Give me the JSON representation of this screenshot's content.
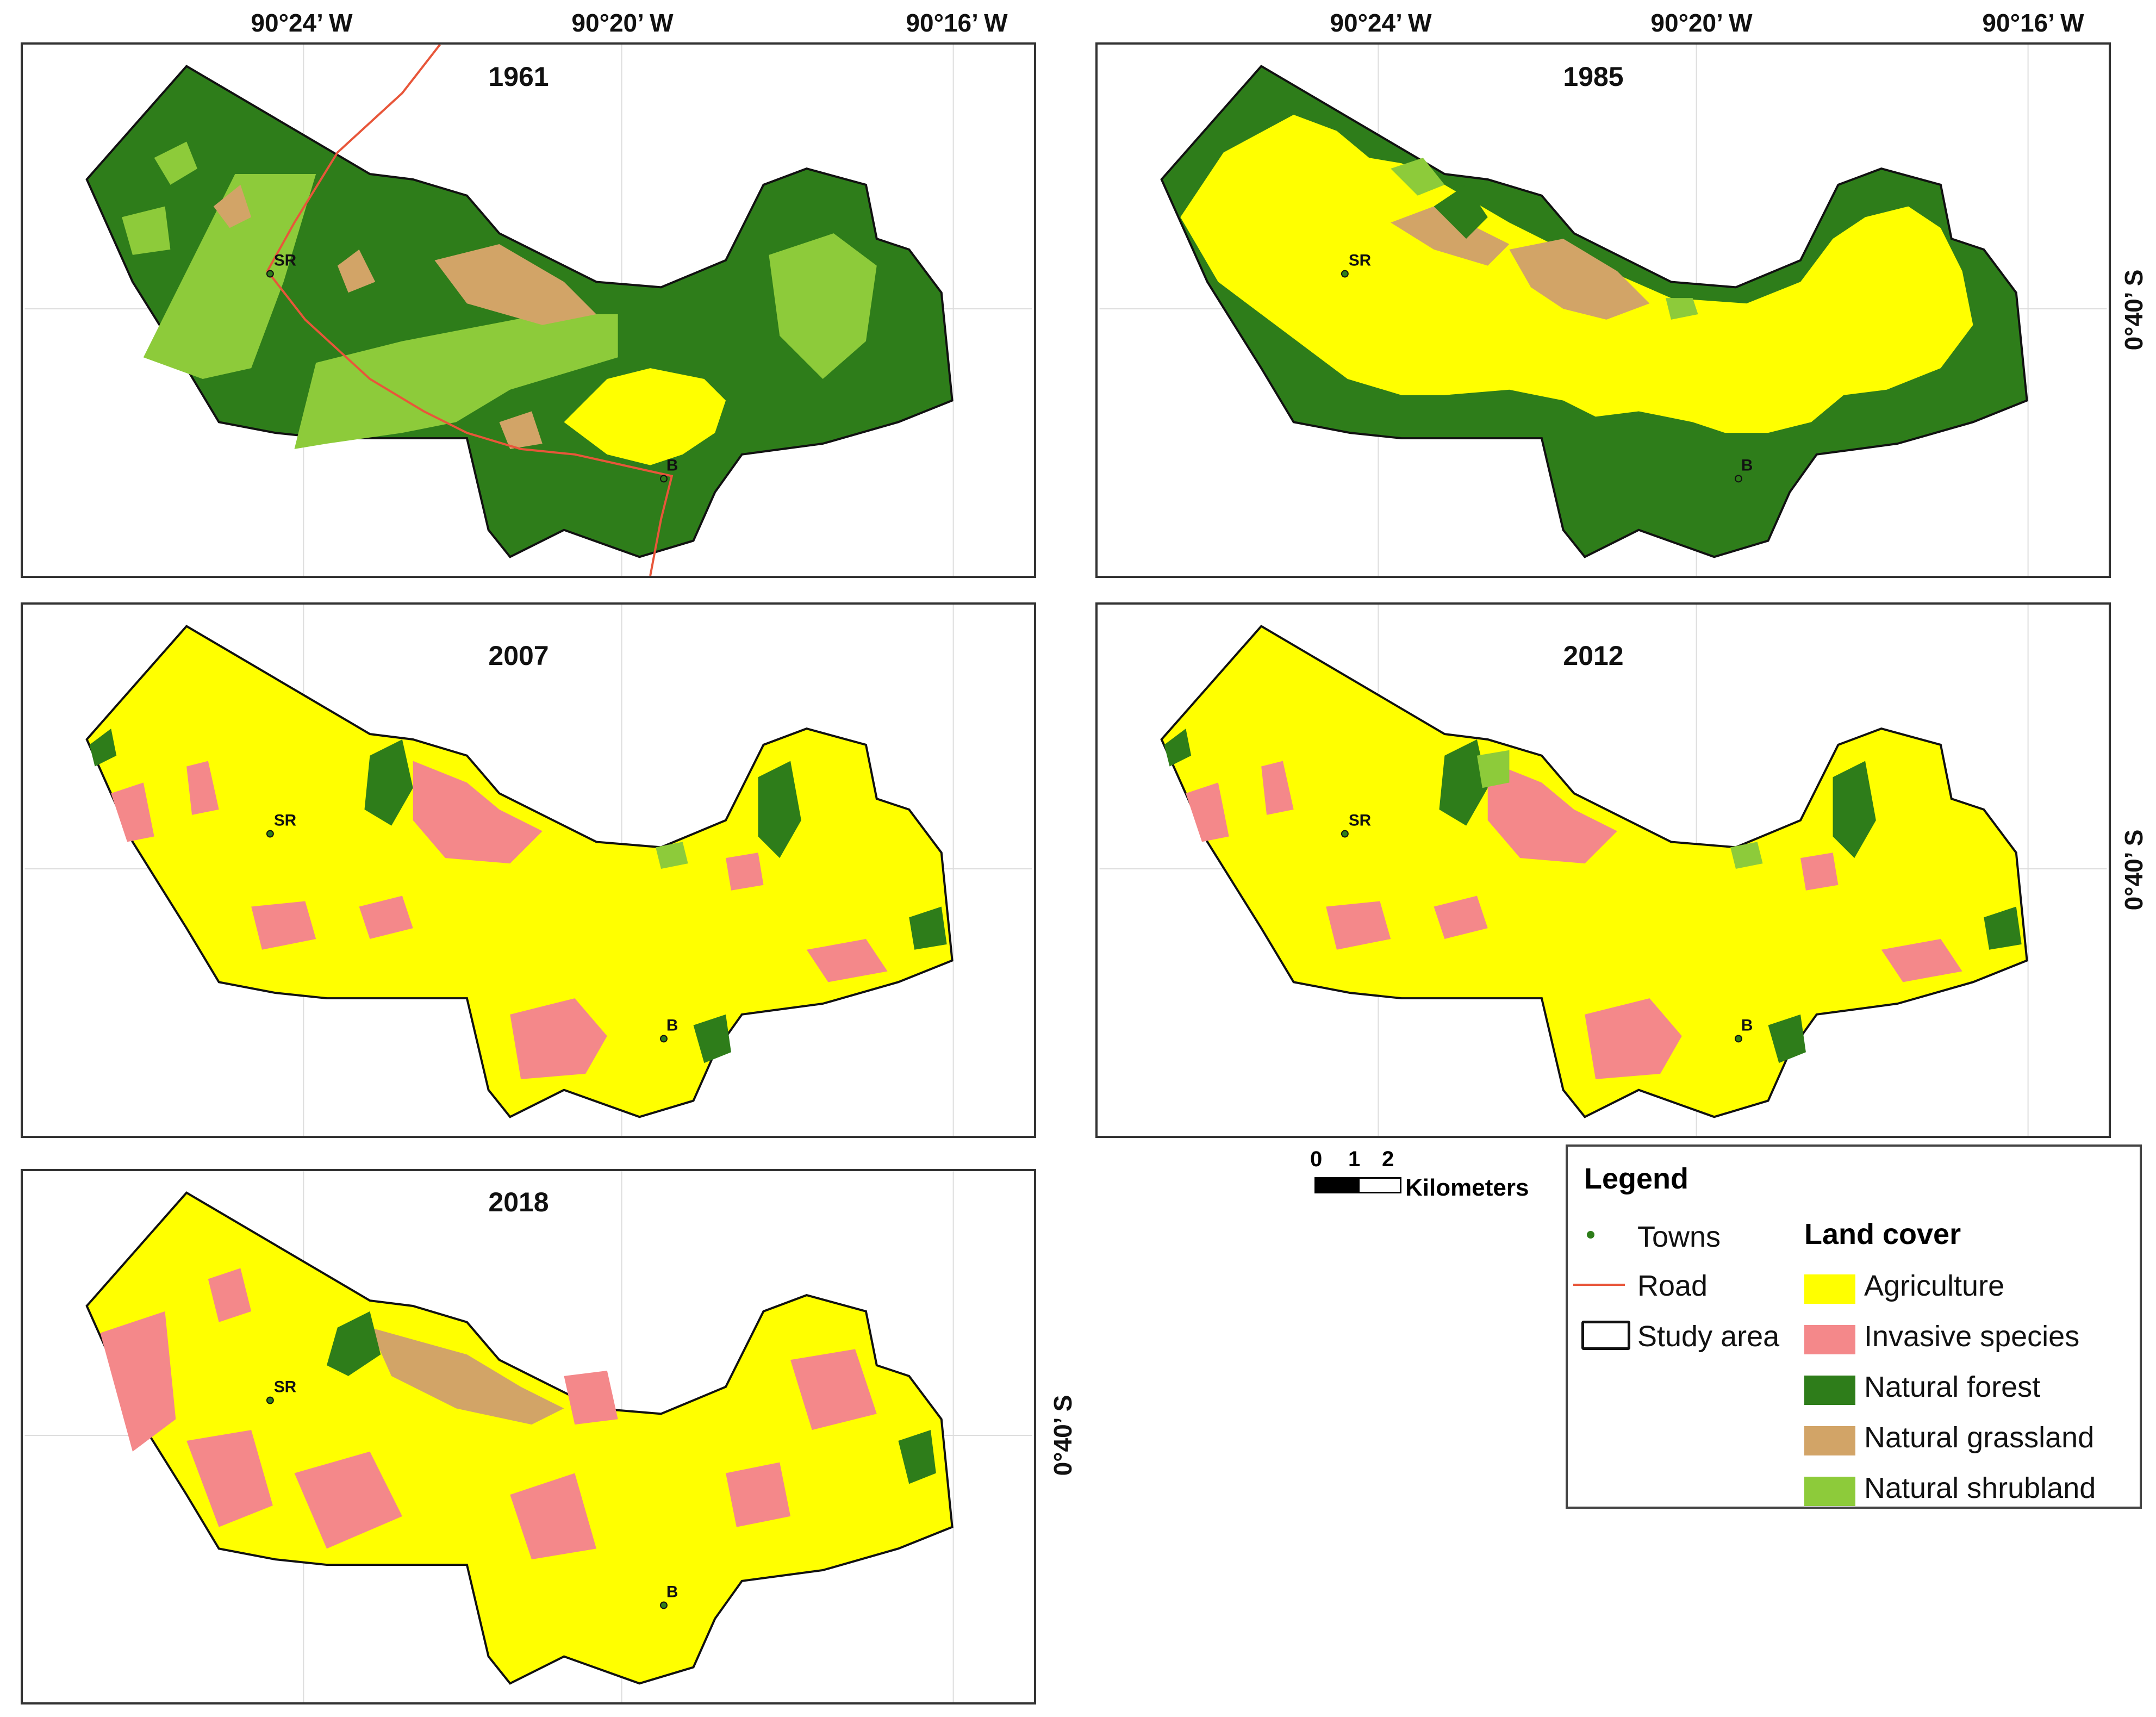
{
  "coordinates": {
    "lon_labels": [
      "90°24’ W",
      "90°20’ W",
      "90°16’ W"
    ],
    "lat_label": "0°40’ S"
  },
  "panels": [
    {
      "year": "1961"
    },
    {
      "year": "1985"
    },
    {
      "year": "2007"
    },
    {
      "year": "2012"
    },
    {
      "year": "2018"
    }
  ],
  "towns": {
    "sr": "SR",
    "b": "B"
  },
  "scale_bar": {
    "ticks": [
      "0",
      "1",
      "2"
    ],
    "unit": "Kilometers"
  },
  "legend": {
    "title": "Legend",
    "towns": "Towns",
    "road": "Road",
    "study_area": "Study area",
    "land_cover_title": "Land cover",
    "classes": [
      {
        "label": "Agriculture",
        "color": "#FFFF00"
      },
      {
        "label": "Invasive species",
        "color": "#F4888A"
      },
      {
        "label": "Natural forest",
        "color": "#2E7D1A"
      },
      {
        "label": "Natural grassland",
        "color": "#D2A467"
      },
      {
        "label": "Natural shrubland",
        "color": "#8DCB3A"
      }
    ]
  },
  "colors": {
    "agriculture": "#FFFF00",
    "invasive": "#F4888A",
    "forest": "#2E7D1A",
    "grassland": "#D2A467",
    "shrubland": "#8DCB3A",
    "road": "#E8563A"
  }
}
